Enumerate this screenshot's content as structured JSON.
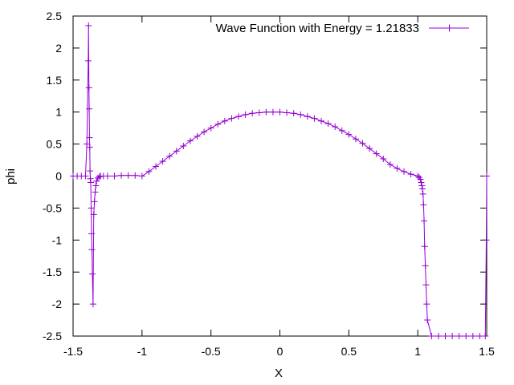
{
  "chart_data": {
    "type": "line",
    "title": "",
    "xlabel": "X",
    "ylabel": "phi",
    "xlim": [
      -1.5,
      1.5
    ],
    "ylim": [
      -2.5,
      2.5
    ],
    "xticks": [
      "-1.5",
      "-1",
      "-0.5",
      "0",
      "0.5",
      "1",
      "1.5"
    ],
    "yticks": [
      "2.5",
      "2",
      "1.5",
      "1",
      "0.5",
      "0",
      "-0.5",
      "-1",
      "-1.5",
      "-2",
      "-2.5"
    ],
    "legend_position": "top-right",
    "grid": false,
    "series": [
      {
        "name": "Wave Function with Energy = 1.21833",
        "color": "#9400d3",
        "marker": "plus",
        "x": [
          -1.5,
          -1.47,
          -1.44,
          -1.41,
          -1.4,
          -1.39,
          -1.388,
          -1.385,
          -1.383,
          -1.381,
          -1.379,
          -1.377,
          -1.375,
          -1.372,
          -1.369,
          -1.366,
          -1.363,
          -1.36,
          -1.355,
          -1.35,
          -1.345,
          -1.34,
          -1.335,
          -1.33,
          -1.32,
          -1.31,
          -1.3,
          -1.28,
          -1.25,
          -1.2,
          -1.15,
          -1.1,
          -1.05,
          -1.0,
          -0.95,
          -0.9,
          -0.85,
          -0.8,
          -0.75,
          -0.7,
          -0.65,
          -0.6,
          -0.55,
          -0.5,
          -0.45,
          -0.4,
          -0.35,
          -0.3,
          -0.25,
          -0.2,
          -0.15,
          -0.1,
          -0.05,
          0.0,
          0.05,
          0.1,
          0.15,
          0.2,
          0.25,
          0.3,
          0.35,
          0.4,
          0.45,
          0.5,
          0.55,
          0.6,
          0.65,
          0.7,
          0.75,
          0.8,
          0.85,
          0.9,
          0.95,
          1.0,
          1.01,
          1.02,
          1.025,
          1.03,
          1.034,
          1.038,
          1.042,
          1.046,
          1.05,
          1.055,
          1.06,
          1.065,
          1.07,
          1.1,
          1.15,
          1.2,
          1.25,
          1.3,
          1.35,
          1.4,
          1.45,
          1.49,
          1.497,
          1.5
        ],
        "y": [
          0.0,
          0.0,
          0.0,
          0.0,
          0.5,
          1.8,
          2.35,
          1.38,
          1.05,
          0.6,
          0.45,
          0.08,
          -0.04,
          -0.1,
          -0.5,
          -0.9,
          -1.15,
          -1.53,
          -2.0,
          -0.6,
          -0.4,
          -0.25,
          -0.15,
          -0.08,
          -0.03,
          -0.01,
          0.0,
          0.0,
          0.0,
          0.0,
          0.01,
          0.01,
          0.01,
          0.0,
          0.07,
          0.15,
          0.23,
          0.31,
          0.39,
          0.47,
          0.55,
          0.62,
          0.69,
          0.75,
          0.81,
          0.86,
          0.9,
          0.93,
          0.96,
          0.98,
          0.99,
          1.0,
          1.0,
          1.0,
          0.99,
          0.98,
          0.96,
          0.93,
          0.9,
          0.86,
          0.82,
          0.77,
          0.71,
          0.65,
          0.58,
          0.51,
          0.43,
          0.35,
          0.27,
          0.18,
          0.12,
          0.07,
          0.03,
          0.0,
          -0.02,
          -0.05,
          -0.1,
          -0.15,
          -0.2,
          -0.28,
          -0.45,
          -0.7,
          -1.1,
          -1.4,
          -1.7,
          -2.0,
          -2.25,
          -2.5,
          -2.5,
          -2.5,
          -2.5,
          -2.5,
          -2.5,
          -2.5,
          -2.5,
          -2.5,
          -1.0,
          0.0
        ]
      }
    ]
  }
}
